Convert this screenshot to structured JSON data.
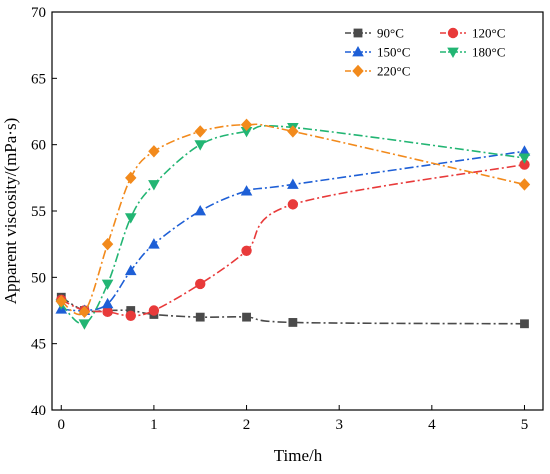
{
  "chart_data": {
    "type": "line",
    "xlabel": "Time/h",
    "ylabel": "Apparent viscosity/(mPa·s)",
    "xlim": [
      -0.1,
      5.2
    ],
    "ylim": [
      40,
      70
    ],
    "xticks": [
      {
        "value": 0,
        "label": "0"
      },
      {
        "value": 1,
        "label": "1"
      },
      {
        "value": 2,
        "label": "2"
      },
      {
        "value": 3,
        "label": "3"
      },
      {
        "value": 4,
        "label": "4"
      },
      {
        "value": 5,
        "label": "5"
      }
    ],
    "yticks": [
      40,
      45,
      50,
      55,
      60,
      65,
      70
    ],
    "grid": false,
    "legend_position": "top-right",
    "series": [
      {
        "name": "90°C",
        "color": "#4a4a4a",
        "marker": "square",
        "points": [
          [
            0,
            48.5
          ],
          [
            0.25,
            47.5
          ],
          [
            0.5,
            47.5
          ],
          [
            0.75,
            47.5
          ],
          [
            1,
            47.2
          ],
          [
            1.5,
            47.0
          ],
          [
            2,
            47.0
          ],
          [
            2.5,
            46.6
          ],
          [
            5,
            46.5
          ]
        ]
      },
      {
        "name": "120°C",
        "color": "#e83a3a",
        "marker": "circle",
        "points": [
          [
            0,
            48.3
          ],
          [
            0.25,
            47.5
          ],
          [
            0.5,
            47.4
          ],
          [
            0.75,
            47.1
          ],
          [
            1,
            47.5
          ],
          [
            1.5,
            49.5
          ],
          [
            2,
            52.0
          ],
          [
            2.5,
            55.5
          ],
          [
            5,
            58.5
          ]
        ]
      },
      {
        "name": "150°C",
        "color": "#1e5fd6",
        "marker": "triangle-up",
        "points": [
          [
            0,
            47.6
          ],
          [
            0.25,
            47.5
          ],
          [
            0.5,
            48.0
          ],
          [
            0.75,
            50.5
          ],
          [
            1,
            52.5
          ],
          [
            1.5,
            55.0
          ],
          [
            2,
            56.5
          ],
          [
            2.5,
            57.0
          ],
          [
            5,
            59.5
          ]
        ]
      },
      {
        "name": "180°C",
        "color": "#22b573",
        "marker": "triangle-down",
        "points": [
          [
            0,
            48.0
          ],
          [
            0.25,
            46.5
          ],
          [
            0.5,
            49.5
          ],
          [
            0.75,
            54.5
          ],
          [
            1,
            57.0
          ],
          [
            1.5,
            60.0
          ],
          [
            2,
            61.0
          ],
          [
            2.5,
            61.3
          ],
          [
            5,
            59.0
          ]
        ]
      },
      {
        "name": "220°C",
        "color": "#f28a1c",
        "marker": "diamond",
        "points": [
          [
            0,
            48.2
          ],
          [
            0.25,
            47.4
          ],
          [
            0.5,
            52.5
          ],
          [
            0.75,
            57.5
          ],
          [
            1,
            59.5
          ],
          [
            1.5,
            61.0
          ],
          [
            2,
            61.5
          ],
          [
            2.5,
            61.0
          ],
          [
            5,
            57.0
          ]
        ]
      }
    ]
  }
}
